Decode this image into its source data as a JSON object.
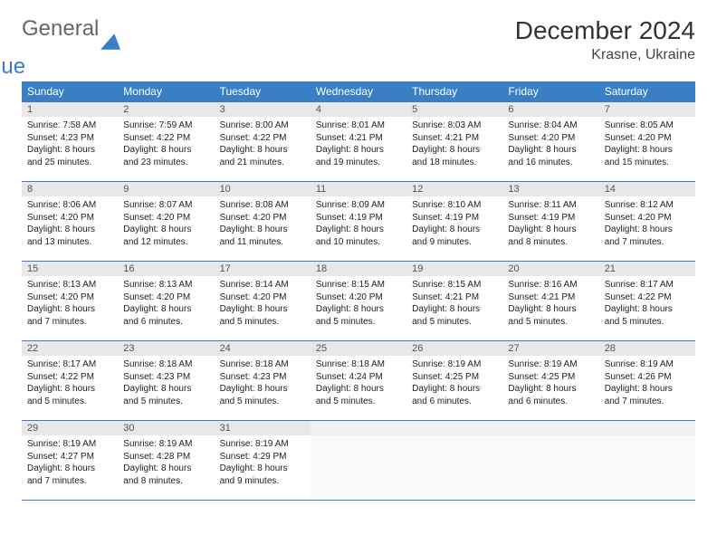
{
  "brand": {
    "part1": "General",
    "part2": "Blue",
    "logo_color": "#3a7fc4",
    "text_color": "#666666"
  },
  "title": "December 2024",
  "location": "Krasne, Ukraine",
  "colors": {
    "header_bg": "#3a7fc4",
    "header_fg": "#ffffff",
    "daynum_bg": "#e8e8e8",
    "border": "#3a7fc4",
    "body_bg": "#ffffff"
  },
  "weekdays": [
    "Sunday",
    "Monday",
    "Tuesday",
    "Wednesday",
    "Thursday",
    "Friday",
    "Saturday"
  ],
  "days": [
    {
      "num": "1",
      "sunrise": "7:58 AM",
      "sunset": "4:23 PM",
      "daylight": "8 hours and 25 minutes."
    },
    {
      "num": "2",
      "sunrise": "7:59 AM",
      "sunset": "4:22 PM",
      "daylight": "8 hours and 23 minutes."
    },
    {
      "num": "3",
      "sunrise": "8:00 AM",
      "sunset": "4:22 PM",
      "daylight": "8 hours and 21 minutes."
    },
    {
      "num": "4",
      "sunrise": "8:01 AM",
      "sunset": "4:21 PM",
      "daylight": "8 hours and 19 minutes."
    },
    {
      "num": "5",
      "sunrise": "8:03 AM",
      "sunset": "4:21 PM",
      "daylight": "8 hours and 18 minutes."
    },
    {
      "num": "6",
      "sunrise": "8:04 AM",
      "sunset": "4:20 PM",
      "daylight": "8 hours and 16 minutes."
    },
    {
      "num": "7",
      "sunrise": "8:05 AM",
      "sunset": "4:20 PM",
      "daylight": "8 hours and 15 minutes."
    },
    {
      "num": "8",
      "sunrise": "8:06 AM",
      "sunset": "4:20 PM",
      "daylight": "8 hours and 13 minutes."
    },
    {
      "num": "9",
      "sunrise": "8:07 AM",
      "sunset": "4:20 PM",
      "daylight": "8 hours and 12 minutes."
    },
    {
      "num": "10",
      "sunrise": "8:08 AM",
      "sunset": "4:20 PM",
      "daylight": "8 hours and 11 minutes."
    },
    {
      "num": "11",
      "sunrise": "8:09 AM",
      "sunset": "4:19 PM",
      "daylight": "8 hours and 10 minutes."
    },
    {
      "num": "12",
      "sunrise": "8:10 AM",
      "sunset": "4:19 PM",
      "daylight": "8 hours and 9 minutes."
    },
    {
      "num": "13",
      "sunrise": "8:11 AM",
      "sunset": "4:19 PM",
      "daylight": "8 hours and 8 minutes."
    },
    {
      "num": "14",
      "sunrise": "8:12 AM",
      "sunset": "4:20 PM",
      "daylight": "8 hours and 7 minutes."
    },
    {
      "num": "15",
      "sunrise": "8:13 AM",
      "sunset": "4:20 PM",
      "daylight": "8 hours and 7 minutes."
    },
    {
      "num": "16",
      "sunrise": "8:13 AM",
      "sunset": "4:20 PM",
      "daylight": "8 hours and 6 minutes."
    },
    {
      "num": "17",
      "sunrise": "8:14 AM",
      "sunset": "4:20 PM",
      "daylight": "8 hours and 5 minutes."
    },
    {
      "num": "18",
      "sunrise": "8:15 AM",
      "sunset": "4:20 PM",
      "daylight": "8 hours and 5 minutes."
    },
    {
      "num": "19",
      "sunrise": "8:15 AM",
      "sunset": "4:21 PM",
      "daylight": "8 hours and 5 minutes."
    },
    {
      "num": "20",
      "sunrise": "8:16 AM",
      "sunset": "4:21 PM",
      "daylight": "8 hours and 5 minutes."
    },
    {
      "num": "21",
      "sunrise": "8:17 AM",
      "sunset": "4:22 PM",
      "daylight": "8 hours and 5 minutes."
    },
    {
      "num": "22",
      "sunrise": "8:17 AM",
      "sunset": "4:22 PM",
      "daylight": "8 hours and 5 minutes."
    },
    {
      "num": "23",
      "sunrise": "8:18 AM",
      "sunset": "4:23 PM",
      "daylight": "8 hours and 5 minutes."
    },
    {
      "num": "24",
      "sunrise": "8:18 AM",
      "sunset": "4:23 PM",
      "daylight": "8 hours and 5 minutes."
    },
    {
      "num": "25",
      "sunrise": "8:18 AM",
      "sunset": "4:24 PM",
      "daylight": "8 hours and 5 minutes."
    },
    {
      "num": "26",
      "sunrise": "8:19 AM",
      "sunset": "4:25 PM",
      "daylight": "8 hours and 6 minutes."
    },
    {
      "num": "27",
      "sunrise": "8:19 AM",
      "sunset": "4:25 PM",
      "daylight": "8 hours and 6 minutes."
    },
    {
      "num": "28",
      "sunrise": "8:19 AM",
      "sunset": "4:26 PM",
      "daylight": "8 hours and 7 minutes."
    },
    {
      "num": "29",
      "sunrise": "8:19 AM",
      "sunset": "4:27 PM",
      "daylight": "8 hours and 7 minutes."
    },
    {
      "num": "30",
      "sunrise": "8:19 AM",
      "sunset": "4:28 PM",
      "daylight": "8 hours and 8 minutes."
    },
    {
      "num": "31",
      "sunrise": "8:19 AM",
      "sunset": "4:29 PM",
      "daylight": "8 hours and 9 minutes."
    }
  ],
  "labels": {
    "sunrise": "Sunrise:",
    "sunset": "Sunset:",
    "daylight": "Daylight:"
  }
}
